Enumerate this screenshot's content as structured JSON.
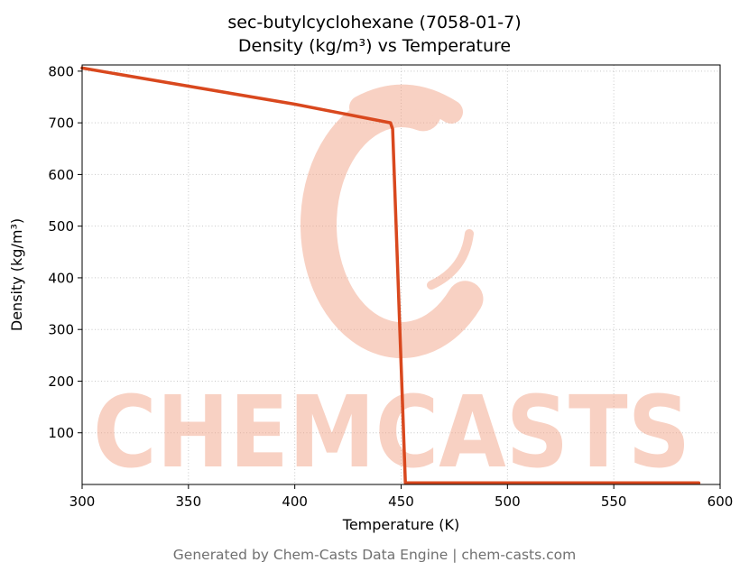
{
  "title_line1": "sec-butylcyclohexane (7058-01-7)",
  "title_line2": "Density (kg/m³) vs Temperature",
  "footer": {
    "text": "Generated by Chem-Casts Data Engine | chem-casts.com"
  },
  "watermark": {
    "text": "CHEMCASTS",
    "color": "#f2a488"
  },
  "chart_data": {
    "type": "line",
    "title": "sec-butylcyclohexane (7058-01-7) — Density (kg/m³) vs Temperature",
    "xlabel": "Temperature (K)",
    "ylabel": "Density (kg/m³)",
    "xlim": [
      300,
      600
    ],
    "ylim": [
      0,
      812
    ],
    "x_ticks": [
      300,
      350,
      400,
      450,
      500,
      550,
      600
    ],
    "y_ticks": [
      100,
      200,
      300,
      400,
      500,
      600,
      700,
      800
    ],
    "grid": true,
    "legend": "none",
    "line_color": "#d9481e",
    "series": [
      {
        "name": "Density",
        "points": [
          [
            300,
            806
          ],
          [
            350,
            771
          ],
          [
            400,
            736
          ],
          [
            445,
            700
          ],
          [
            446,
            688
          ],
          [
            452,
            3
          ],
          [
            590,
            3
          ]
        ]
      }
    ]
  }
}
